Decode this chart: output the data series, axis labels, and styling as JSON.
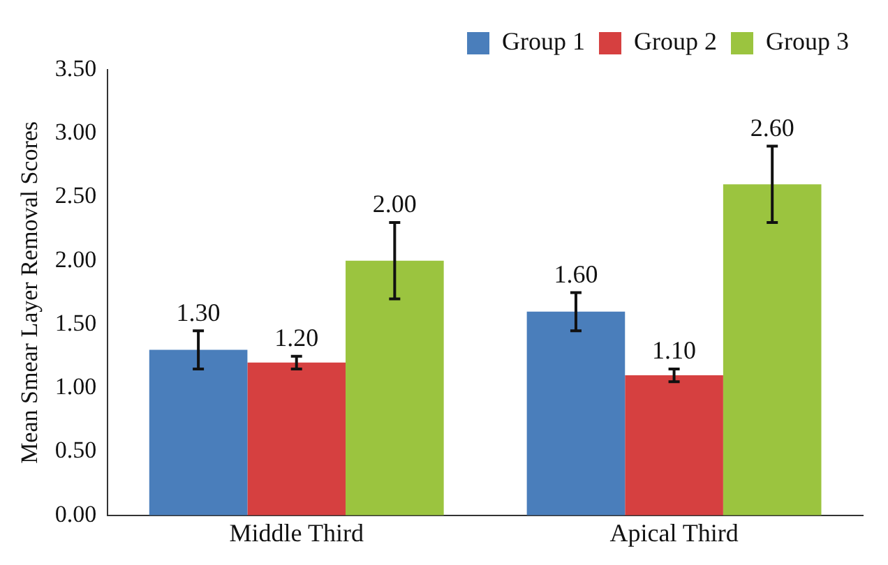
{
  "chart_data": {
    "type": "bar",
    "ylabel": "Mean Smear Layer Removal Scores",
    "categories": [
      "Middle Third",
      "Apical Third"
    ],
    "series": [
      {
        "name": "Group 1",
        "color": "#4a7ebb",
        "values": [
          1.3,
          1.6
        ],
        "errors": [
          0.15,
          0.15
        ],
        "value_labels": [
          "1.30",
          "1.60"
        ]
      },
      {
        "name": "Group 2",
        "color": "#d64040",
        "values": [
          1.2,
          1.1
        ],
        "errors": [
          0.05,
          0.05
        ],
        "value_labels": [
          "1.20",
          "1.10"
        ]
      },
      {
        "name": "Group 3",
        "color": "#9bc43f",
        "values": [
          2.0,
          2.6
        ],
        "errors": [
          0.3,
          0.3
        ],
        "value_labels": [
          "2.00",
          "2.60"
        ]
      }
    ],
    "ylim": [
      0,
      3.5
    ],
    "yticks": [
      {
        "value": 0,
        "label": "0.00"
      },
      {
        "value": 0.5,
        "label": "0.50"
      },
      {
        "value": 1,
        "label": "1.00"
      },
      {
        "value": 1.5,
        "label": "1.50"
      },
      {
        "value": 2,
        "label": "2.00"
      },
      {
        "value": 2.5,
        "label": "2.50"
      },
      {
        "value": 3,
        "label": "3.00"
      },
      {
        "value": 3.5,
        "label": "3.50"
      }
    ],
    "grid": false,
    "legend": "top right"
  }
}
